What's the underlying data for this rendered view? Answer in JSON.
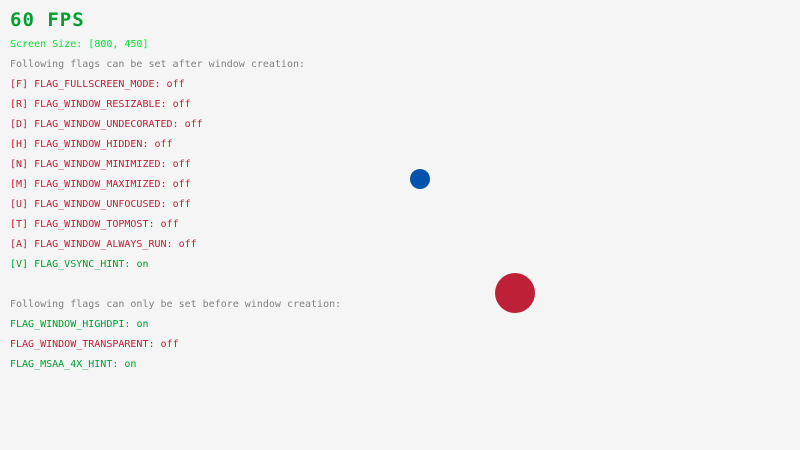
{
  "fps": "60 FPS",
  "screen_size": "Screen Size: [800, 450]",
  "after_header": "Following flags can be set after window creation:",
  "after_flags": [
    {
      "label": "[F] FLAG_FULLSCREEN_MODE:",
      "value": "off"
    },
    {
      "label": "[R] FLAG_WINDOW_RESIZABLE:",
      "value": "off"
    },
    {
      "label": "[D] FLAG_WINDOW_UNDECORATED:",
      "value": "off"
    },
    {
      "label": "[H] FLAG_WINDOW_HIDDEN:",
      "value": "off"
    },
    {
      "label": "[N] FLAG_WINDOW_MINIMIZED:",
      "value": "off"
    },
    {
      "label": "[M] FLAG_WINDOW_MAXIMIZED:",
      "value": "off"
    },
    {
      "label": "[U] FLAG_WINDOW_UNFOCUSED:",
      "value": "off"
    },
    {
      "label": "[T] FLAG_WINDOW_TOPMOST:",
      "value": "off"
    },
    {
      "label": "[A] FLAG_WINDOW_ALWAYS_RUN:",
      "value": "off"
    },
    {
      "label": "[V] FLAG_VSYNC_HINT:",
      "value": "on"
    }
  ],
  "before_header": "Following flags can only be set before window creation:",
  "before_flags": [
    {
      "label": "FLAG_WINDOW_HIGHDPI:",
      "value": "on"
    },
    {
      "label": "FLAG_WINDOW_TRANSPARENT:",
      "value": "off"
    },
    {
      "label": "FLAG_MSAA_4X_HINT:",
      "value": "on"
    }
  ],
  "colors": {
    "background": "#f5f5f5",
    "on": "#009e2f",
    "off": "#be2137",
    "screen_size": "#00e430",
    "header": "#828282",
    "small_ball": "#0052ac",
    "large_ball": "#be2137"
  }
}
